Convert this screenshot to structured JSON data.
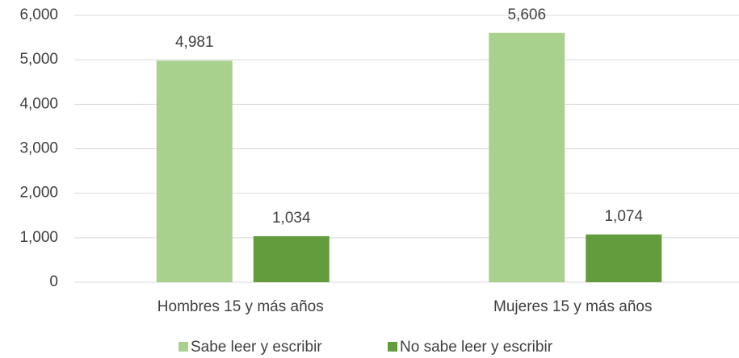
{
  "chart_data": {
    "type": "bar",
    "categories": [
      "Hombres 15 y más años",
      "Mujeres 15 y más años"
    ],
    "series": [
      {
        "name": "Sabe leer y escribir",
        "color": "#a9d18e",
        "values": [
          4981,
          5606
        ],
        "value_labels": [
          "4,981",
          "5,606"
        ]
      },
      {
        "name": "No sabe leer y escribir",
        "color": "#629c3c",
        "values": [
          1034,
          1074
        ],
        "value_labels": [
          "1,034",
          "1,074"
        ]
      }
    ],
    "ylim": [
      0,
      6000
    ],
    "yticks": [
      0,
      {
        "value": 1000,
        "label": "1,000"
      },
      {
        "value": 2000,
        "label": "2,000"
      },
      {
        "value": 3000,
        "label": "3,000"
      },
      {
        "value": 4000,
        "label": "4,000"
      },
      {
        "value": 5000,
        "label": "5,000"
      },
      {
        "value": 6000,
        "label": "6,000"
      }
    ],
    "grid": true,
    "legend": "bottom"
  }
}
